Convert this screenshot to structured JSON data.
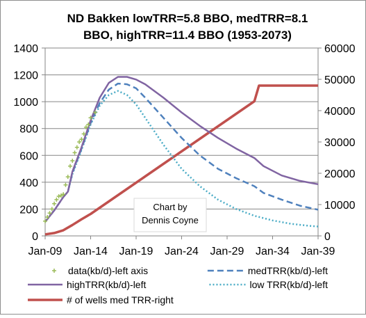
{
  "chart_data": {
    "type": "line",
    "title_line1": "ND Bakken lowTRR=5.8 BBO, medTRR=8.1",
    "title_line2": "BBO, highTRR=11.4 BBO (1953-2073)",
    "annotation_line1": "Chart by",
    "annotation_line2": "Dennis Coyne",
    "x_ticks": [
      "Jan-09",
      "Jan-14",
      "Jan-19",
      "Jan-24",
      "Jan-29",
      "Jan-34",
      "Jan-39"
    ],
    "x_range": [
      2009,
      2039
    ],
    "y_left_ticks": [
      "0",
      "200",
      "400",
      "600",
      "800",
      "1000",
      "1200",
      "1400"
    ],
    "y_left_range": [
      0,
      1400
    ],
    "y_right_ticks": [
      "0",
      "10000",
      "20000",
      "30000",
      "40000",
      "50000",
      "60000"
    ],
    "y_right_range": [
      0,
      60000
    ],
    "grid": "horizontal",
    "legend_placement": "bottom",
    "series": [
      {
        "name": "data(kb/d)-left axis",
        "axis": "left",
        "style": "cross-markers",
        "color": "#9bbb59",
        "x": [
          2009.0,
          2009.25,
          2009.5,
          2009.75,
          2010.0,
          2010.25,
          2010.5,
          2010.75,
          2011.0,
          2011.25,
          2011.5,
          2011.75,
          2012.0,
          2012.25,
          2012.5,
          2012.75,
          2013.0,
          2013.25,
          2013.5,
          2013.75,
          2014.0,
          2014.5
        ],
        "values": [
          110,
          140,
          170,
          200,
          240,
          270,
          295,
          300,
          310,
          380,
          440,
          520,
          560,
          620,
          660,
          700,
          720,
          760,
          810,
          830,
          880,
          920
        ]
      },
      {
        "name": "medTRR(kb/d)-left",
        "axis": "left",
        "style": "dashed",
        "color": "#4f81bd",
        "x": [
          2009,
          2010,
          2011,
          2011.5,
          2012,
          2013,
          2014,
          2015,
          2016,
          2017,
          2018,
          2019,
          2020,
          2022,
          2024,
          2026,
          2028,
          2030,
          2032,
          2033,
          2035,
          2037,
          2039
        ],
        "values": [
          105,
          190,
          290,
          330,
          470,
          650,
          840,
          990,
          1090,
          1135,
          1130,
          1100,
          1030,
          880,
          730,
          600,
          500,
          430,
          370,
          320,
          270,
          225,
          195
        ]
      },
      {
        "name": "highTRR(kb/d)-left",
        "axis": "left",
        "style": "solid",
        "color": "#8064a2",
        "x": [
          2009,
          2010,
          2011,
          2011.5,
          2012,
          2013,
          2014,
          2015,
          2016,
          2017,
          2018,
          2019,
          2020,
          2022,
          2024,
          2026,
          2028,
          2030,
          2032,
          2033,
          2035,
          2037,
          2039
        ],
        "values": [
          105,
          190,
          290,
          330,
          480,
          660,
          860,
          1030,
          1140,
          1185,
          1185,
          1165,
          1130,
          1030,
          920,
          820,
          730,
          650,
          580,
          520,
          450,
          410,
          385
        ]
      },
      {
        "name": "low TRR(kb/d)-left",
        "axis": "left",
        "style": "dotted",
        "color": "#4bacc6",
        "x": [
          2009,
          2010,
          2011,
          2011.5,
          2012,
          2013,
          2014,
          2015,
          2016,
          2017,
          2018,
          2019,
          2020,
          2022,
          2024,
          2026,
          2028,
          2030,
          2032,
          2034,
          2036,
          2038,
          2039
        ],
        "values": [
          105,
          190,
          290,
          330,
          460,
          640,
          830,
          970,
          1050,
          1080,
          1050,
          980,
          880,
          680,
          500,
          370,
          270,
          200,
          150,
          115,
          90,
          75,
          70
        ]
      },
      {
        "name": "# of wells med TRR-right",
        "axis": "right",
        "style": "solid-thick",
        "color": "#c0504d",
        "x": [
          2009,
          2010,
          2011,
          2012,
          2013,
          2014,
          2016,
          2018,
          2020,
          2022,
          2024,
          2026,
          2028,
          2030,
          2032,
          2032.5,
          2035,
          2039
        ],
        "values": [
          500,
          900,
          1800,
          3500,
          5300,
          7000,
          11000,
          15000,
          19000,
          23000,
          27000,
          31000,
          35000,
          39000,
          43000,
          48000,
          48000,
          48000
        ]
      }
    ]
  }
}
